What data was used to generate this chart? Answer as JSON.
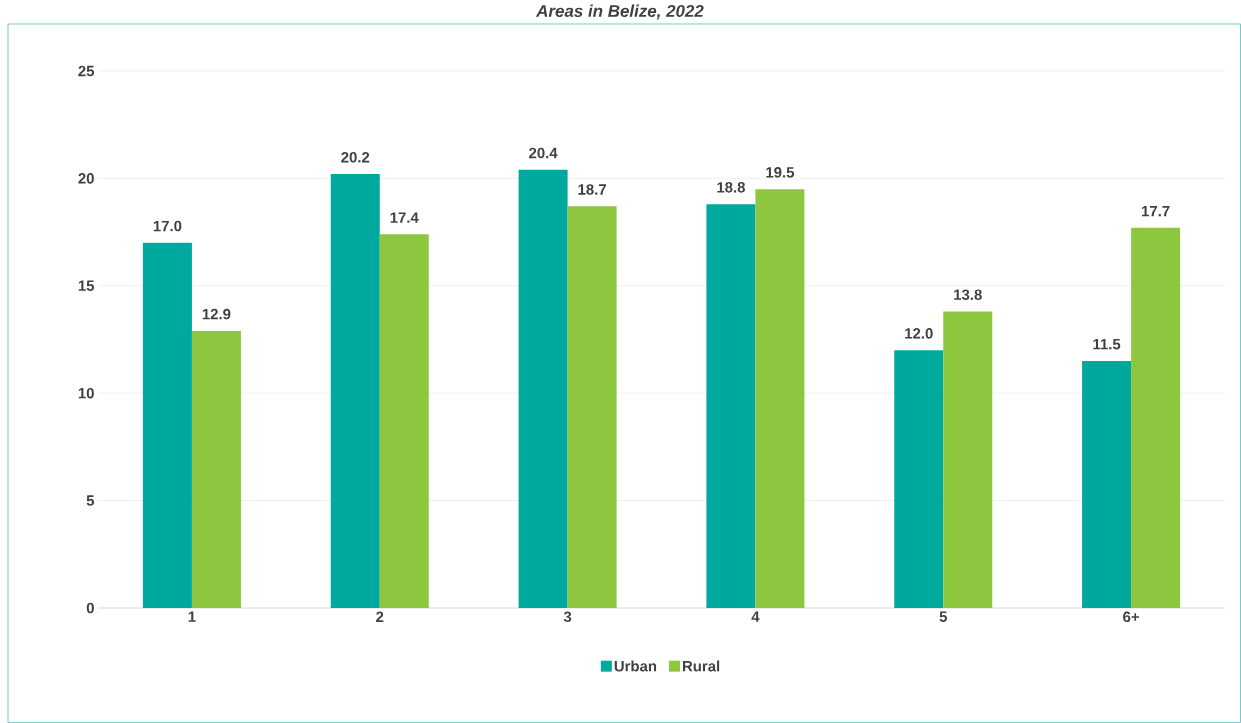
{
  "chart_data": {
    "type": "bar",
    "title": "Areas in Belize, 2022",
    "categories": [
      "1",
      "2",
      "3",
      "4",
      "5",
      "6+"
    ],
    "series": [
      {
        "name": "Urban",
        "color": "#00a99d",
        "values": [
          17.0,
          20.2,
          20.4,
          18.8,
          12.0,
          11.5
        ],
        "value_labels": [
          "17.0",
          "20.2",
          "20.4",
          "18.8",
          "12.0",
          "11.5"
        ]
      },
      {
        "name": "Rural",
        "color": "#8dc63f",
        "values": [
          12.9,
          17.4,
          18.7,
          19.5,
          13.8,
          17.7
        ],
        "value_labels": [
          "12.9",
          "17.4",
          "18.7",
          "19.5",
          "13.8",
          "17.7"
        ]
      }
    ],
    "ylim": [
      0,
      25
    ],
    "yticks": [
      0,
      5,
      10,
      15,
      20,
      25
    ],
    "grid": "y",
    "legend": "bottom"
  }
}
